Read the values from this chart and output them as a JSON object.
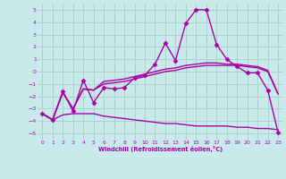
{
  "background_color": "#c8eaea",
  "grid_color": "#aacccc",
  "line_color": "#aa00aa",
  "xlabel": "Windchill (Refroidissement éolien,°C)",
  "xlim": [
    -0.5,
    23.5
  ],
  "ylim": [
    -5.5,
    5.5
  ],
  "yticks": [
    -5,
    -4,
    -3,
    -2,
    -1,
    0,
    1,
    2,
    3,
    4,
    5
  ],
  "xticks": [
    0,
    1,
    2,
    3,
    4,
    5,
    6,
    7,
    8,
    9,
    10,
    11,
    12,
    13,
    14,
    15,
    16,
    17,
    18,
    19,
    20,
    21,
    22,
    23
  ],
  "series": [
    {
      "x": [
        0,
        1,
        2,
        3,
        4,
        5,
        6,
        7,
        8,
        9,
        10,
        11,
        12,
        13,
        14,
        15,
        16,
        17,
        18,
        19,
        20,
        21,
        22,
        23
      ],
      "y": [
        -3.4,
        -3.9,
        -1.6,
        -3.2,
        -0.7,
        -2.5,
        -1.3,
        -1.4,
        -1.3,
        -0.5,
        -0.3,
        0.6,
        2.3,
        0.9,
        3.9,
        5.0,
        5.0,
        2.2,
        1.0,
        0.4,
        -0.1,
        -0.1,
        -1.5,
        -4.9
      ],
      "marker": "D",
      "markersize": 2.5,
      "linewidth": 1.0
    },
    {
      "x": [
        0,
        1,
        2,
        3,
        4,
        5,
        6,
        7,
        8,
        9,
        10,
        11,
        12,
        13,
        14,
        15,
        16,
        17,
        18,
        19,
        20,
        21,
        22,
        23
      ],
      "y": [
        -3.4,
        -3.9,
        -1.7,
        -3.0,
        -1.4,
        -1.5,
        -1.0,
        -0.9,
        -0.8,
        -0.6,
        -0.4,
        -0.2,
        0.0,
        0.1,
        0.3,
        0.4,
        0.5,
        0.5,
        0.5,
        0.5,
        0.4,
        0.3,
        0.0,
        -1.8
      ],
      "marker": null,
      "markersize": 0,
      "linewidth": 1.0
    },
    {
      "x": [
        0,
        1,
        2,
        3,
        4,
        5,
        6,
        7,
        8,
        9,
        10,
        11,
        12,
        13,
        14,
        15,
        16,
        17,
        18,
        19,
        20,
        21,
        22,
        23
      ],
      "y": [
        -3.4,
        -3.9,
        -1.7,
        -3.0,
        -1.4,
        -1.5,
        -0.8,
        -0.7,
        -0.6,
        -0.4,
        -0.2,
        0.0,
        0.2,
        0.3,
        0.5,
        0.6,
        0.7,
        0.7,
        0.6,
        0.6,
        0.5,
        0.4,
        0.1,
        -1.8
      ],
      "marker": null,
      "markersize": 0,
      "linewidth": 1.0
    },
    {
      "x": [
        0,
        1,
        2,
        3,
        4,
        5,
        6,
        7,
        8,
        9,
        10,
        11,
        12,
        13,
        14,
        15,
        16,
        17,
        18,
        19,
        20,
        21,
        22,
        23
      ],
      "y": [
        -3.4,
        -3.9,
        -3.5,
        -3.4,
        -3.4,
        -3.4,
        -3.6,
        -3.7,
        -3.8,
        -3.9,
        -4.0,
        -4.1,
        -4.2,
        -4.2,
        -4.3,
        -4.4,
        -4.4,
        -4.4,
        -4.4,
        -4.5,
        -4.5,
        -4.6,
        -4.6,
        -4.7
      ],
      "marker": null,
      "markersize": 0,
      "linewidth": 1.0
    }
  ]
}
